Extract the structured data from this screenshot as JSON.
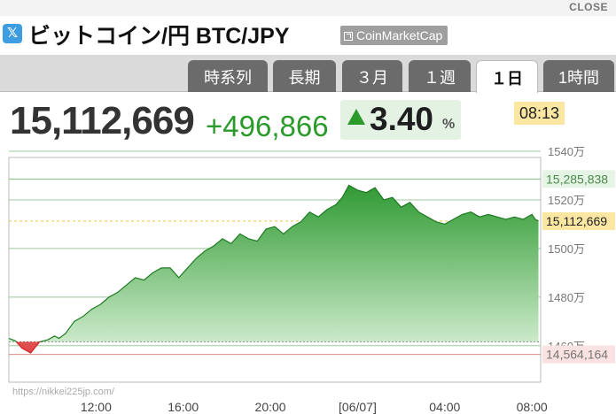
{
  "header": {
    "close_label": "CLOSE",
    "x_logo": "𝕏",
    "title": "ビットコイン/円 BTC/JPY",
    "source": "CoinMarketCap"
  },
  "tabs": [
    {
      "label": "時系列",
      "active": false
    },
    {
      "label": "長期",
      "active": false
    },
    {
      "label": "３月",
      "active": false
    },
    {
      "label": "１週",
      "active": false
    },
    {
      "label": "１日",
      "active": true
    },
    {
      "label": "1時間",
      "active": false
    }
  ],
  "quote": {
    "price": "15,112,669",
    "change": "+496,866",
    "change_pct": "3.40",
    "pct_sign": "%",
    "time": "08:13"
  },
  "colors": {
    "up": "#2a9a2a",
    "down": "#e03030",
    "tab_bg": "#6b6b6b"
  },
  "chart_data": {
    "type": "area",
    "y_tick_labels": [
      "1540万",
      "1520万",
      "1500万",
      "1480万",
      "1460万"
    ],
    "y_ticks": [
      15400000,
      15200000,
      15000000,
      14800000,
      14600000
    ],
    "ylim": [
      14450000,
      15440000
    ],
    "x_tick_labels": [
      "12:00",
      "16:00",
      "20:00",
      "[06/07]",
      "04:00",
      "08:00"
    ],
    "x_ticks": [
      12,
      16,
      20,
      24,
      28,
      32
    ],
    "xlim": [
      8,
      32.4
    ],
    "high": 15285838,
    "low": 14564164,
    "last": 15112669,
    "high_label": "15,285,838",
    "low_label": "14,564,164",
    "last_label": "15,112,669",
    "previous_close": 14615803,
    "grid": true,
    "watermark": "https://nikkei225jp.com/",
    "series": [
      {
        "x": [
          8,
          8.3,
          8.6,
          9.0,
          9.4,
          9.8,
          10.1,
          10.3,
          10.6,
          11.0,
          11.4,
          11.8,
          12.2,
          12.6,
          13.0,
          13.4,
          13.8,
          14.2,
          14.6,
          15.0,
          15.4,
          15.8,
          16.2,
          16.6,
          17.0,
          17.4,
          17.8,
          18.2,
          18.6,
          19.0,
          19.4,
          19.8,
          20.2,
          20.6,
          21.0,
          21.4,
          21.8,
          22.2,
          22.6,
          23.0,
          23.3,
          23.6,
          24.0,
          24.4,
          24.8,
          25.2,
          25.6,
          26.0,
          26.4,
          26.8,
          27.2,
          27.6,
          28.0,
          28.4,
          28.8,
          29.2,
          29.6,
          30.0,
          30.4,
          30.8,
          31.2,
          31.6,
          32.0,
          32.15,
          32.3
        ],
        "y": [
          14630000,
          14620000,
          14590000,
          14570000,
          14615000,
          14625000,
          14640000,
          14630000,
          14650000,
          14700000,
          14720000,
          14750000,
          14770000,
          14800000,
          14820000,
          14850000,
          14880000,
          14870000,
          14900000,
          14920000,
          14920000,
          14880000,
          14920000,
          14960000,
          14990000,
          15010000,
          15040000,
          15020000,
          15060000,
          15040000,
          15030000,
          15080000,
          15090000,
          15060000,
          15090000,
          15110000,
          15150000,
          15130000,
          15160000,
          15180000,
          15210000,
          15260000,
          15240000,
          15230000,
          15250000,
          15200000,
          15210000,
          15170000,
          15190000,
          15150000,
          15130000,
          15110000,
          15100000,
          15120000,
          15140000,
          15150000,
          15130000,
          15140000,
          15130000,
          15120000,
          15130000,
          15120000,
          15140000,
          15120000,
          15112669
        ]
      }
    ]
  }
}
